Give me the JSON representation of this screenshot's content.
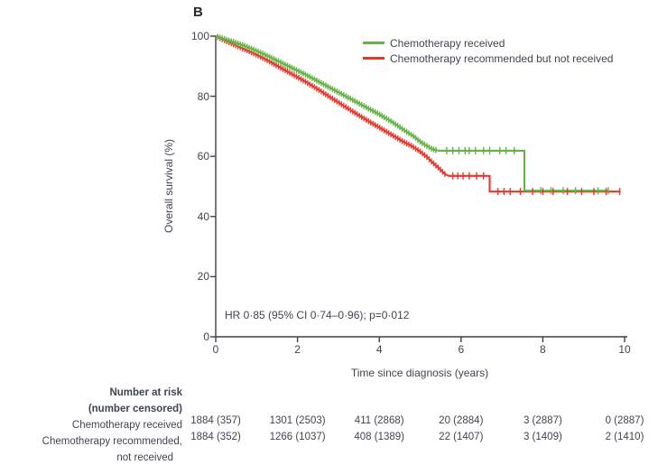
{
  "panel_label": "B",
  "colors": {
    "green": "#62b344",
    "red": "#e7372c",
    "text": "#3f4550",
    "axis": "#3a4046"
  },
  "legend": [
    {
      "label": "Chemotherapy received",
      "color": "#62b344"
    },
    {
      "label": "Chemotherapy recommended but not received",
      "color": "#e7372c"
    }
  ],
  "annotation": "HR 0·85 (95% CI 0·74–0·96); p=0·012",
  "chart_data": {
    "type": "line",
    "subtype": "kaplan-meier-step",
    "title": "B",
    "xlabel": "Time since diagnosis (years)",
    "ylabel": "Overall survival (%)",
    "xlim": [
      0,
      10
    ],
    "ylim": [
      0,
      100
    ],
    "xticks": [
      0,
      2,
      4,
      6,
      8,
      10
    ],
    "yticks": [
      0,
      20,
      40,
      60,
      80,
      100
    ],
    "grid": false,
    "legend_position": "top-right",
    "series": [
      {
        "name": "Chemotherapy received",
        "color": "#62b344",
        "points": [
          [
            0,
            100
          ],
          [
            0.15,
            99.3
          ],
          [
            0.4,
            98.2
          ],
          [
            0.7,
            96.8
          ],
          [
            1.0,
            95.1
          ],
          [
            1.3,
            93.2
          ],
          [
            1.6,
            91.2
          ],
          [
            1.9,
            89.2
          ],
          [
            2.2,
            87.2
          ],
          [
            2.5,
            85.0
          ],
          [
            2.8,
            82.8
          ],
          [
            3.1,
            80.6
          ],
          [
            3.4,
            78.4
          ],
          [
            3.7,
            76.2
          ],
          [
            4.0,
            74.0
          ],
          [
            4.3,
            71.6
          ],
          [
            4.6,
            68.8
          ],
          [
            4.85,
            66.6
          ],
          [
            5.05,
            64.4
          ],
          [
            5.2,
            63.2
          ],
          [
            5.3,
            62.4
          ],
          [
            5.45,
            61.9
          ],
          [
            7.55,
            61.9
          ],
          [
            7.55,
            48.6
          ],
          [
            9.62,
            48.6
          ]
        ],
        "censor_times": [
          5.65,
          5.8,
          5.95,
          6.1,
          6.2,
          6.35,
          6.55,
          6.7,
          6.95,
          7.1,
          7.3,
          7.95,
          8.2,
          8.5,
          8.8,
          9.35,
          9.6
        ],
        "dense_censoring": {
          "from": 0.05,
          "to": 5.4,
          "spacing": 0.055
        }
      },
      {
        "name": "Chemotherapy recommended but not received",
        "color": "#e7372c",
        "points": [
          [
            0,
            100
          ],
          [
            0.15,
            99.0
          ],
          [
            0.4,
            97.5
          ],
          [
            0.7,
            95.7
          ],
          [
            1.0,
            93.8
          ],
          [
            1.3,
            91.7
          ],
          [
            1.6,
            89.4
          ],
          [
            1.9,
            87.1
          ],
          [
            2.2,
            84.8
          ],
          [
            2.5,
            82.3
          ],
          [
            2.8,
            79.7
          ],
          [
            3.1,
            77.1
          ],
          [
            3.4,
            74.5
          ],
          [
            3.7,
            72.0
          ],
          [
            4.0,
            69.6
          ],
          [
            4.3,
            67.2
          ],
          [
            4.6,
            64.8
          ],
          [
            4.8,
            63.4
          ],
          [
            5.0,
            61.6
          ],
          [
            5.15,
            60.0
          ],
          [
            5.3,
            58.0
          ],
          [
            5.45,
            56.2
          ],
          [
            5.6,
            54.2
          ],
          [
            5.7,
            53.5
          ],
          [
            6.7,
            53.5
          ],
          [
            6.7,
            48.3
          ],
          [
            9.9,
            48.3
          ]
        ],
        "censor_times": [
          5.8,
          5.92,
          6.05,
          6.2,
          6.38,
          6.55,
          6.9,
          7.05,
          7.2,
          7.45,
          7.75,
          8.0,
          8.25,
          8.6,
          8.95,
          9.25,
          9.55,
          9.88
        ],
        "dense_censoring": {
          "from": 0.05,
          "to": 5.65,
          "spacing": 0.055
        }
      }
    ],
    "annotations": [
      "HR 0·85 (95% CI 0·74–0·96); p=0·012"
    ]
  },
  "risk_table": {
    "header": [
      "Number at risk",
      "(number censored)"
    ],
    "time_points": [
      0,
      2,
      4,
      6,
      8,
      10
    ],
    "rows": [
      {
        "label_lines": [
          "Chemotherapy received"
        ],
        "values": [
          "1884 (357)",
          "1301 (2503)",
          "411 (2868)",
          "20 (2884)",
          "3 (2887)",
          "0 (2887)"
        ]
      },
      {
        "label_lines": [
          "Chemotherapy recommended,",
          "not received"
        ],
        "values": [
          "1884 (352)",
          "1266 (1037)",
          "408 (1389)",
          "22 (1407)",
          "3 (1409)",
          "2 (1410)"
        ]
      }
    ]
  }
}
